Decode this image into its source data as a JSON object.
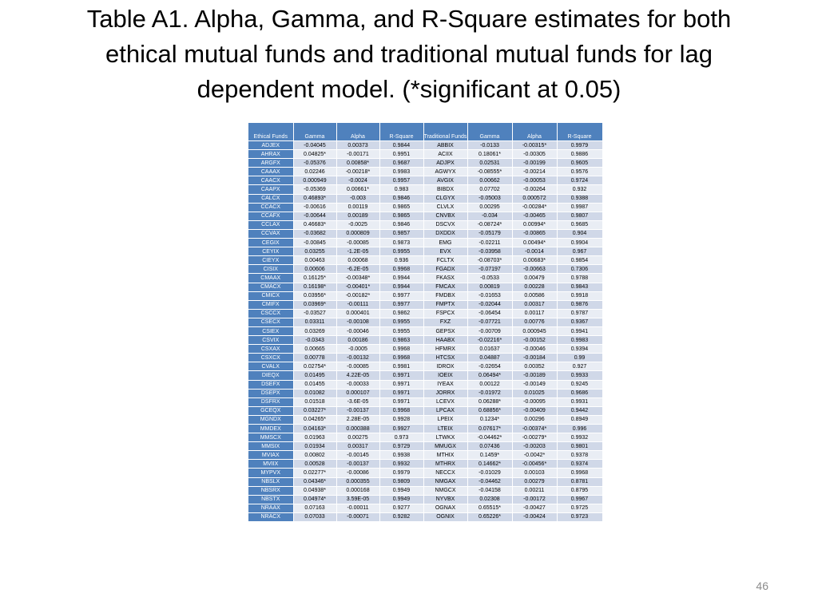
{
  "title": "Table A1. Alpha, Gamma, and R-Square estimates for both ethical mutual funds and traditional mutual funds for lag dependent model. (*significant at 0.05)",
  "table": {
    "headers": [
      "Ethical Funds",
      "Gamma",
      "Alpha",
      "R-Square",
      "Traditional Funds",
      "Gamma",
      "Alpha",
      "R-Square"
    ],
    "rows": [
      [
        "ADJEX",
        "-0.04045",
        "0.00373",
        "0.9844",
        "ABBIX",
        "-0.0133",
        "-0.00315*",
        "0.9979"
      ],
      [
        "AHRAX",
        "0.04825*",
        "-0.00171",
        "0.9951",
        "ACIIX",
        "0.18061*",
        "-0.00305",
        "0.9886"
      ],
      [
        "ARGFX",
        "-0.05376",
        "0.00858*",
        "0.9687",
        "ADJPX",
        "0.02531",
        "-0.00199",
        "0.9605"
      ],
      [
        "CAAAX",
        "0.02246",
        "-0.00218*",
        "0.9983",
        "AGWYX",
        "-0.08555*",
        "-0.00214",
        "0.9576"
      ],
      [
        "CAACX",
        "0.000949",
        "-0.0024",
        "0.9957",
        "AVGIX",
        "0.00662",
        "-0.00053",
        "0.9724"
      ],
      [
        "CAAPX",
        "-0.05369",
        "0.00661*",
        "0.983",
        "BIBDX",
        "0.07702",
        "-0.00264",
        "0.932"
      ],
      [
        "CALCX",
        "0.46893*",
        "-0.003",
        "0.9846",
        "CLGYX",
        "-0.05003",
        "0.000572",
        "0.9388"
      ],
      [
        "CCACX",
        "-0.00616",
        "0.00119",
        "0.9865",
        "CLVLX",
        "0.00295",
        "-0.00284*",
        "0.9987"
      ],
      [
        "CCAFX",
        "-0.00644",
        "0.00189",
        "0.9865",
        "CNVBX",
        "-0.034",
        "-0.00465",
        "0.9807"
      ],
      [
        "CCLAX",
        "0.46683*",
        "-0.0025",
        "0.9846",
        "DSCVX",
        "-0.08724*",
        "0.00994*",
        "0.9685"
      ],
      [
        "CCVAX",
        "-0.03682",
        "0.000809",
        "0.9857",
        "DXDDX",
        "-0.05179",
        "-0.00865",
        "0.904"
      ],
      [
        "CEGIX",
        "-0.00845",
        "-0.00085",
        "0.9873",
        "EMG",
        "-0.02211",
        "0.00494*",
        "0.9904"
      ],
      [
        "CEYIX",
        "0.03255",
        "-1.2E-05",
        "0.9955",
        "EVX",
        "-0.03958",
        "-0.0014",
        "0.967"
      ],
      [
        "CIEYX",
        "0.00463",
        "0.00068",
        "0.936",
        "FCLTX",
        "-0.08703*",
        "0.00683*",
        "0.9854"
      ],
      [
        "CISIX",
        "0.00606",
        "-6.2E-05",
        "0.9968",
        "FGADX",
        "-0.07197",
        "-0.00663",
        "0.7306"
      ],
      [
        "CMAAX",
        "0.16125*",
        "-0.00348*",
        "0.9944",
        "FKASX",
        "-0.0533",
        "0.00479",
        "0.9788"
      ],
      [
        "CMACX",
        "0.16198*",
        "-0.00401*",
        "0.9944",
        "FMCAX",
        "0.00819",
        "0.00228",
        "0.9843"
      ],
      [
        "CMICX",
        "0.03956*",
        "-0.00182*",
        "0.9977",
        "FMDBX",
        "-0.01653",
        "0.00586",
        "0.9918"
      ],
      [
        "CMIFX",
        "0.03969*",
        "-0.00111",
        "0.9977",
        "FMPTX",
        "-0.02044",
        "0.00317",
        "0.9876"
      ],
      [
        "CSCCX",
        "-0.03527",
        "0.000401",
        "0.9862",
        "FSPCX",
        "-0.06454",
        "0.00117",
        "0.9787"
      ],
      [
        "CSECX",
        "0.03311",
        "-0.00108",
        "0.9955",
        "FXZ",
        "-0.07721",
        "0.00776",
        "0.9367"
      ],
      [
        "CSIEX",
        "0.03269",
        "-0.00046",
        "0.9955",
        "GEPSX",
        "-0.00709",
        "0.000945",
        "0.9941"
      ],
      [
        "CSVIX",
        "-0.0343",
        "0.00186",
        "0.9863",
        "HAABX",
        "-0.02216*",
        "-0.00152",
        "0.9983"
      ],
      [
        "CSXAX",
        "0.00665",
        "-0.0005",
        "0.9968",
        "HFMRX",
        "0.01637",
        "-0.00046",
        "0.9394"
      ],
      [
        "CSXCX",
        "0.00778",
        "-0.00132",
        "0.9968",
        "HTCSX",
        "0.04887",
        "-0.00184",
        "0.99"
      ],
      [
        "CVALX",
        "0.02754*",
        "-0.00085",
        "0.9981",
        "IDROX",
        "-0.02654",
        "0.00352",
        "0.927"
      ],
      [
        "DIEQX",
        "0.01495",
        "4.22E-05",
        "0.9971",
        "IOEIX",
        "0.06494*",
        "-0.00189",
        "0.9933"
      ],
      [
        "DSEFX",
        "0.01455",
        "-0.00033",
        "0.9971",
        "IYEAX",
        "0.00122",
        "-0.00149",
        "0.9245"
      ],
      [
        "DSEPX",
        "0.01082",
        "0.000107",
        "0.9971",
        "JORRX",
        "-0.01972",
        "0.01025",
        "0.9686"
      ],
      [
        "DSFRX",
        "0.01518",
        "-3.6E-05",
        "0.9971",
        "LCEVX",
        "0.06288*",
        "-0.00095",
        "0.9931"
      ],
      [
        "GCEQX",
        "0.03227*",
        "-0.00137",
        "0.9968",
        "LPCAX",
        "0.68856*",
        "-0.00409",
        "0.9442"
      ],
      [
        "MGNDX",
        "0.04265*",
        "2.28E-05",
        "0.9928",
        "LPEIX",
        "0.1234*",
        "0.00296",
        "0.8949"
      ],
      [
        "MMDEX",
        "0.04163*",
        "0.000388",
        "0.9927",
        "LTEIX",
        "0.07617*",
        "-0.00374*",
        "0.996"
      ],
      [
        "MMSCX",
        "0.01963",
        "0.00275",
        "0.973",
        "LTWKX",
        "-0.04462*",
        "-0.00279*",
        "0.9932"
      ],
      [
        "MMSIX",
        "0.01934",
        "0.00317",
        "0.9729",
        "MMUGX",
        "0.07436",
        "-0.00203",
        "0.9801"
      ],
      [
        "MVIAX",
        "0.00802",
        "-0.00145",
        "0.9938",
        "MTHIX",
        "0.1459*",
        "-0.0042*",
        "0.9378"
      ],
      [
        "MVIIX",
        "0.00528",
        "-0.00137",
        "0.9932",
        "MTHRX",
        "0.14662*",
        "-0.00456*",
        "0.9374"
      ],
      [
        "MYPVX",
        "0.02277*",
        "-0.00086",
        "0.9979",
        "NECCX",
        "-0.01029",
        "0.00103",
        "0.9968"
      ],
      [
        "NBSLX",
        "0.04346*",
        "0.000355",
        "0.9809",
        "NMGAX",
        "-0.04462",
        "0.00279",
        "0.8781"
      ],
      [
        "NBSRX",
        "0.04938*",
        "0.000168",
        "0.9949",
        "NMGCX",
        "-0.04158",
        "0.00211",
        "0.8795"
      ],
      [
        "NBSTX",
        "0.04974*",
        "3.59E-05",
        "0.9949",
        "NYVBX",
        "0.02308",
        "-0.00172",
        "0.9967"
      ],
      [
        "NRAAX",
        "0.07163",
        "-0.00011",
        "0.9277",
        "OGNAX",
        "0.65515*",
        "-0.00427",
        "0.9725"
      ],
      [
        "NRACX",
        "0.07033",
        "-0.00071",
        "0.9282",
        "OGNIX",
        "0.65226*",
        "-0.00424",
        "0.9723"
      ]
    ]
  },
  "page_number": "46",
  "colors": {
    "header_bg": "#4f81bd",
    "row_odd": "#d0d8e8",
    "row_even": "#e9edf4"
  }
}
